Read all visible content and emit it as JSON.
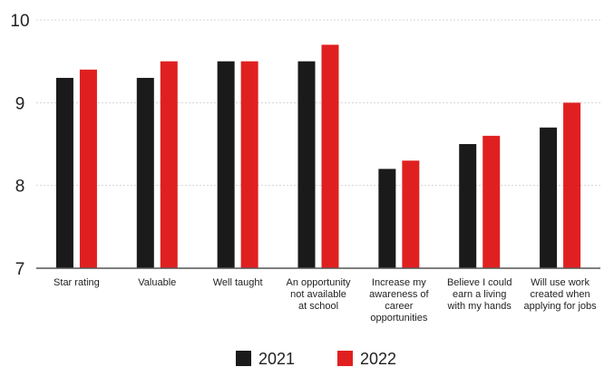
{
  "chart_data": {
    "type": "bar",
    "categories": [
      [
        "Star rating"
      ],
      [
        "Valuable"
      ],
      [
        "Well taught"
      ],
      [
        "An opportunity",
        "not available",
        "at school"
      ],
      [
        "Increase my",
        "awareness of",
        "career",
        "opportunities"
      ],
      [
        "Believe I could",
        "earn a living",
        "with my hands"
      ],
      [
        "Will use work",
        "created when",
        "applying for jobs"
      ]
    ],
    "series": [
      {
        "name": "2021",
        "color": "#1a1a1a",
        "values": [
          9.3,
          9.3,
          9.5,
          9.5,
          8.2,
          8.5,
          8.7
        ]
      },
      {
        "name": "2022",
        "color": "#e02020",
        "values": [
          9.4,
          9.5,
          9.5,
          9.7,
          8.3,
          8.6,
          9.0
        ]
      }
    ],
    "ylim": [
      7,
      10
    ],
    "yticks": [
      "7",
      "8",
      "9",
      "10"
    ],
    "grid": true,
    "legend_position": "bottom-center"
  }
}
